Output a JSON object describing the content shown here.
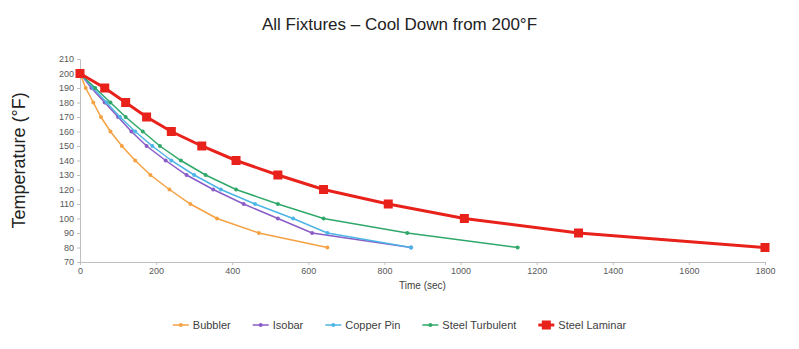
{
  "chart_data": {
    "type": "line",
    "title": "All Fixtures – Cool Down from 200°F",
    "x_label": "Time (sec)",
    "y_label": "Temperature (°F)",
    "xlim": [
      0,
      1800
    ],
    "xticks": [
      0,
      200,
      400,
      600,
      800,
      1000,
      1200,
      1400,
      1600,
      1800
    ],
    "ylim": [
      70,
      210
    ],
    "yticks": [
      70,
      80,
      90,
      100,
      110,
      120,
      130,
      140,
      150,
      160,
      170,
      180,
      190,
      200,
      210
    ],
    "grid": false,
    "legend": "bottom",
    "series": [
      {
        "name": "Bubbler",
        "color": "#f5a142",
        "marker": "circle",
        "x": [
          0,
          15,
          35,
          55,
          80,
          110,
          145,
          185,
          235,
          290,
          360,
          470,
          650
        ],
        "values": [
          200,
          190,
          180,
          170,
          160,
          150,
          140,
          130,
          120,
          110,
          100,
          90,
          80
        ]
      },
      {
        "name": "Isobar",
        "color": "#8a5cc7",
        "marker": "circle",
        "x": [
          0,
          30,
          65,
          100,
          135,
          175,
          225,
          280,
          350,
          430,
          520,
          610,
          870
        ],
        "values": [
          200,
          190,
          180,
          170,
          160,
          150,
          140,
          130,
          120,
          110,
          100,
          90,
          80
        ]
      },
      {
        "name": "Copper Pin",
        "color": "#4db5e6",
        "marker": "circle",
        "x": [
          0,
          35,
          70,
          105,
          145,
          190,
          240,
          300,
          370,
          460,
          560,
          650,
          870
        ],
        "values": [
          200,
          190,
          180,
          170,
          160,
          150,
          140,
          130,
          120,
          110,
          100,
          90,
          80
        ]
      },
      {
        "name": "Steel Turbulent",
        "color": "#2fa86a",
        "marker": "circle",
        "x": [
          0,
          40,
          80,
          120,
          165,
          210,
          265,
          330,
          410,
          520,
          640,
          860,
          1150
        ],
        "values": [
          200,
          190,
          180,
          170,
          160,
          150,
          140,
          130,
          120,
          110,
          100,
          90,
          80
        ]
      },
      {
        "name": "Steel Laminar",
        "color": "#e8211b",
        "marker": "square",
        "x": [
          0,
          65,
          120,
          175,
          240,
          320,
          410,
          520,
          640,
          810,
          1010,
          1310,
          1800
        ],
        "values": [
          200,
          190,
          180,
          170,
          160,
          150,
          140,
          130,
          120,
          110,
          100,
          90,
          80
        ]
      }
    ]
  }
}
